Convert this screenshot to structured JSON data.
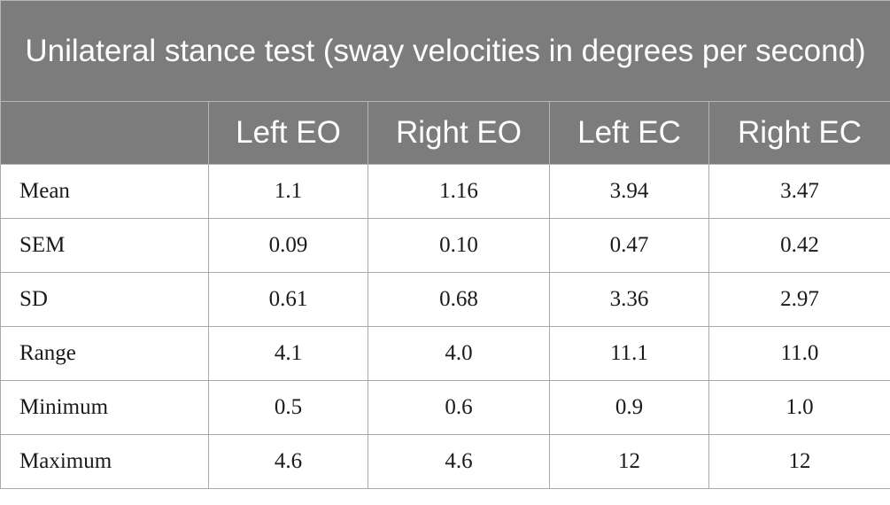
{
  "table": {
    "caption": "Unilateral stance test (sway velocities in degrees per second)",
    "columns": [
      "",
      "Left EO",
      "Right EO",
      "Left EC",
      "Right EC"
    ],
    "rows": [
      {
        "label": "Mean",
        "values": [
          "1.1",
          "1.16",
          "3.94",
          "3.47"
        ]
      },
      {
        "label": "SEM",
        "values": [
          "0.09",
          "0.10",
          "0.47",
          "0.42"
        ]
      },
      {
        "label": "SD",
        "values": [
          "0.61",
          "0.68",
          "3.36",
          "2.97"
        ]
      },
      {
        "label": "Range",
        "values": [
          "4.1",
          "4.0",
          "11.1",
          "11.0"
        ]
      },
      {
        "label": "Minimum",
        "values": [
          "0.5",
          "0.6",
          "0.9",
          "1.0"
        ]
      },
      {
        "label": "Maximum",
        "values": [
          "4.6",
          "4.6",
          "12",
          "12"
        ]
      }
    ]
  },
  "colors": {
    "header_background": "#7b7c7b",
    "header_text": "#ffffff",
    "grid_line": "#a8a8a8",
    "body_text": "#1a1a1a"
  }
}
